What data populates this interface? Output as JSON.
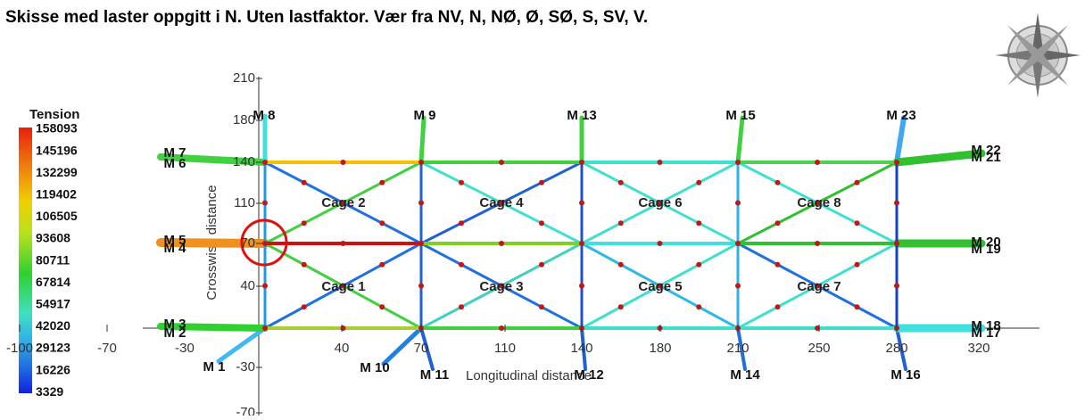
{
  "title": "Skisse med laster oppgitt i N. Uten lastfaktor. Vær fra NV, N, NØ, Ø, SØ, S, SV, V.",
  "colorbar": {
    "title": "Tension",
    "labels": [
      "158093",
      "145196",
      "132299",
      "119402",
      "106505",
      "93608",
      "80711",
      "67814",
      "54917",
      "42020",
      "29123",
      "16226",
      "3329"
    ]
  },
  "axes": {
    "x_label": "Longitudinal distance",
    "y_label": "Crosswise distance",
    "xticks": [
      "-100",
      "-70",
      "-30",
      "40",
      "70",
      "110",
      "140",
      "180",
      "210",
      "250",
      "280",
      "320"
    ],
    "yticks": [
      "210",
      "180",
      "140",
      "110",
      "70",
      "40",
      "-30",
      "-70"
    ]
  },
  "cages": [
    "Cage 1",
    "Cage 2",
    "Cage 3",
    "Cage 4",
    "Cage 5",
    "Cage 6",
    "Cage 7",
    "Cage 8"
  ],
  "moorings": [
    "M 1",
    "M 2",
    "M 3",
    "M 4",
    "M 5",
    "M 6",
    "M 7",
    "M 8",
    "M 9",
    "M 10",
    "M 11",
    "M 12",
    "M 13",
    "M 14",
    "M 15",
    "M 16",
    "M 17",
    "M 18",
    "M 19",
    "M 20",
    "M 21",
    "M 22",
    "M 23"
  ]
}
